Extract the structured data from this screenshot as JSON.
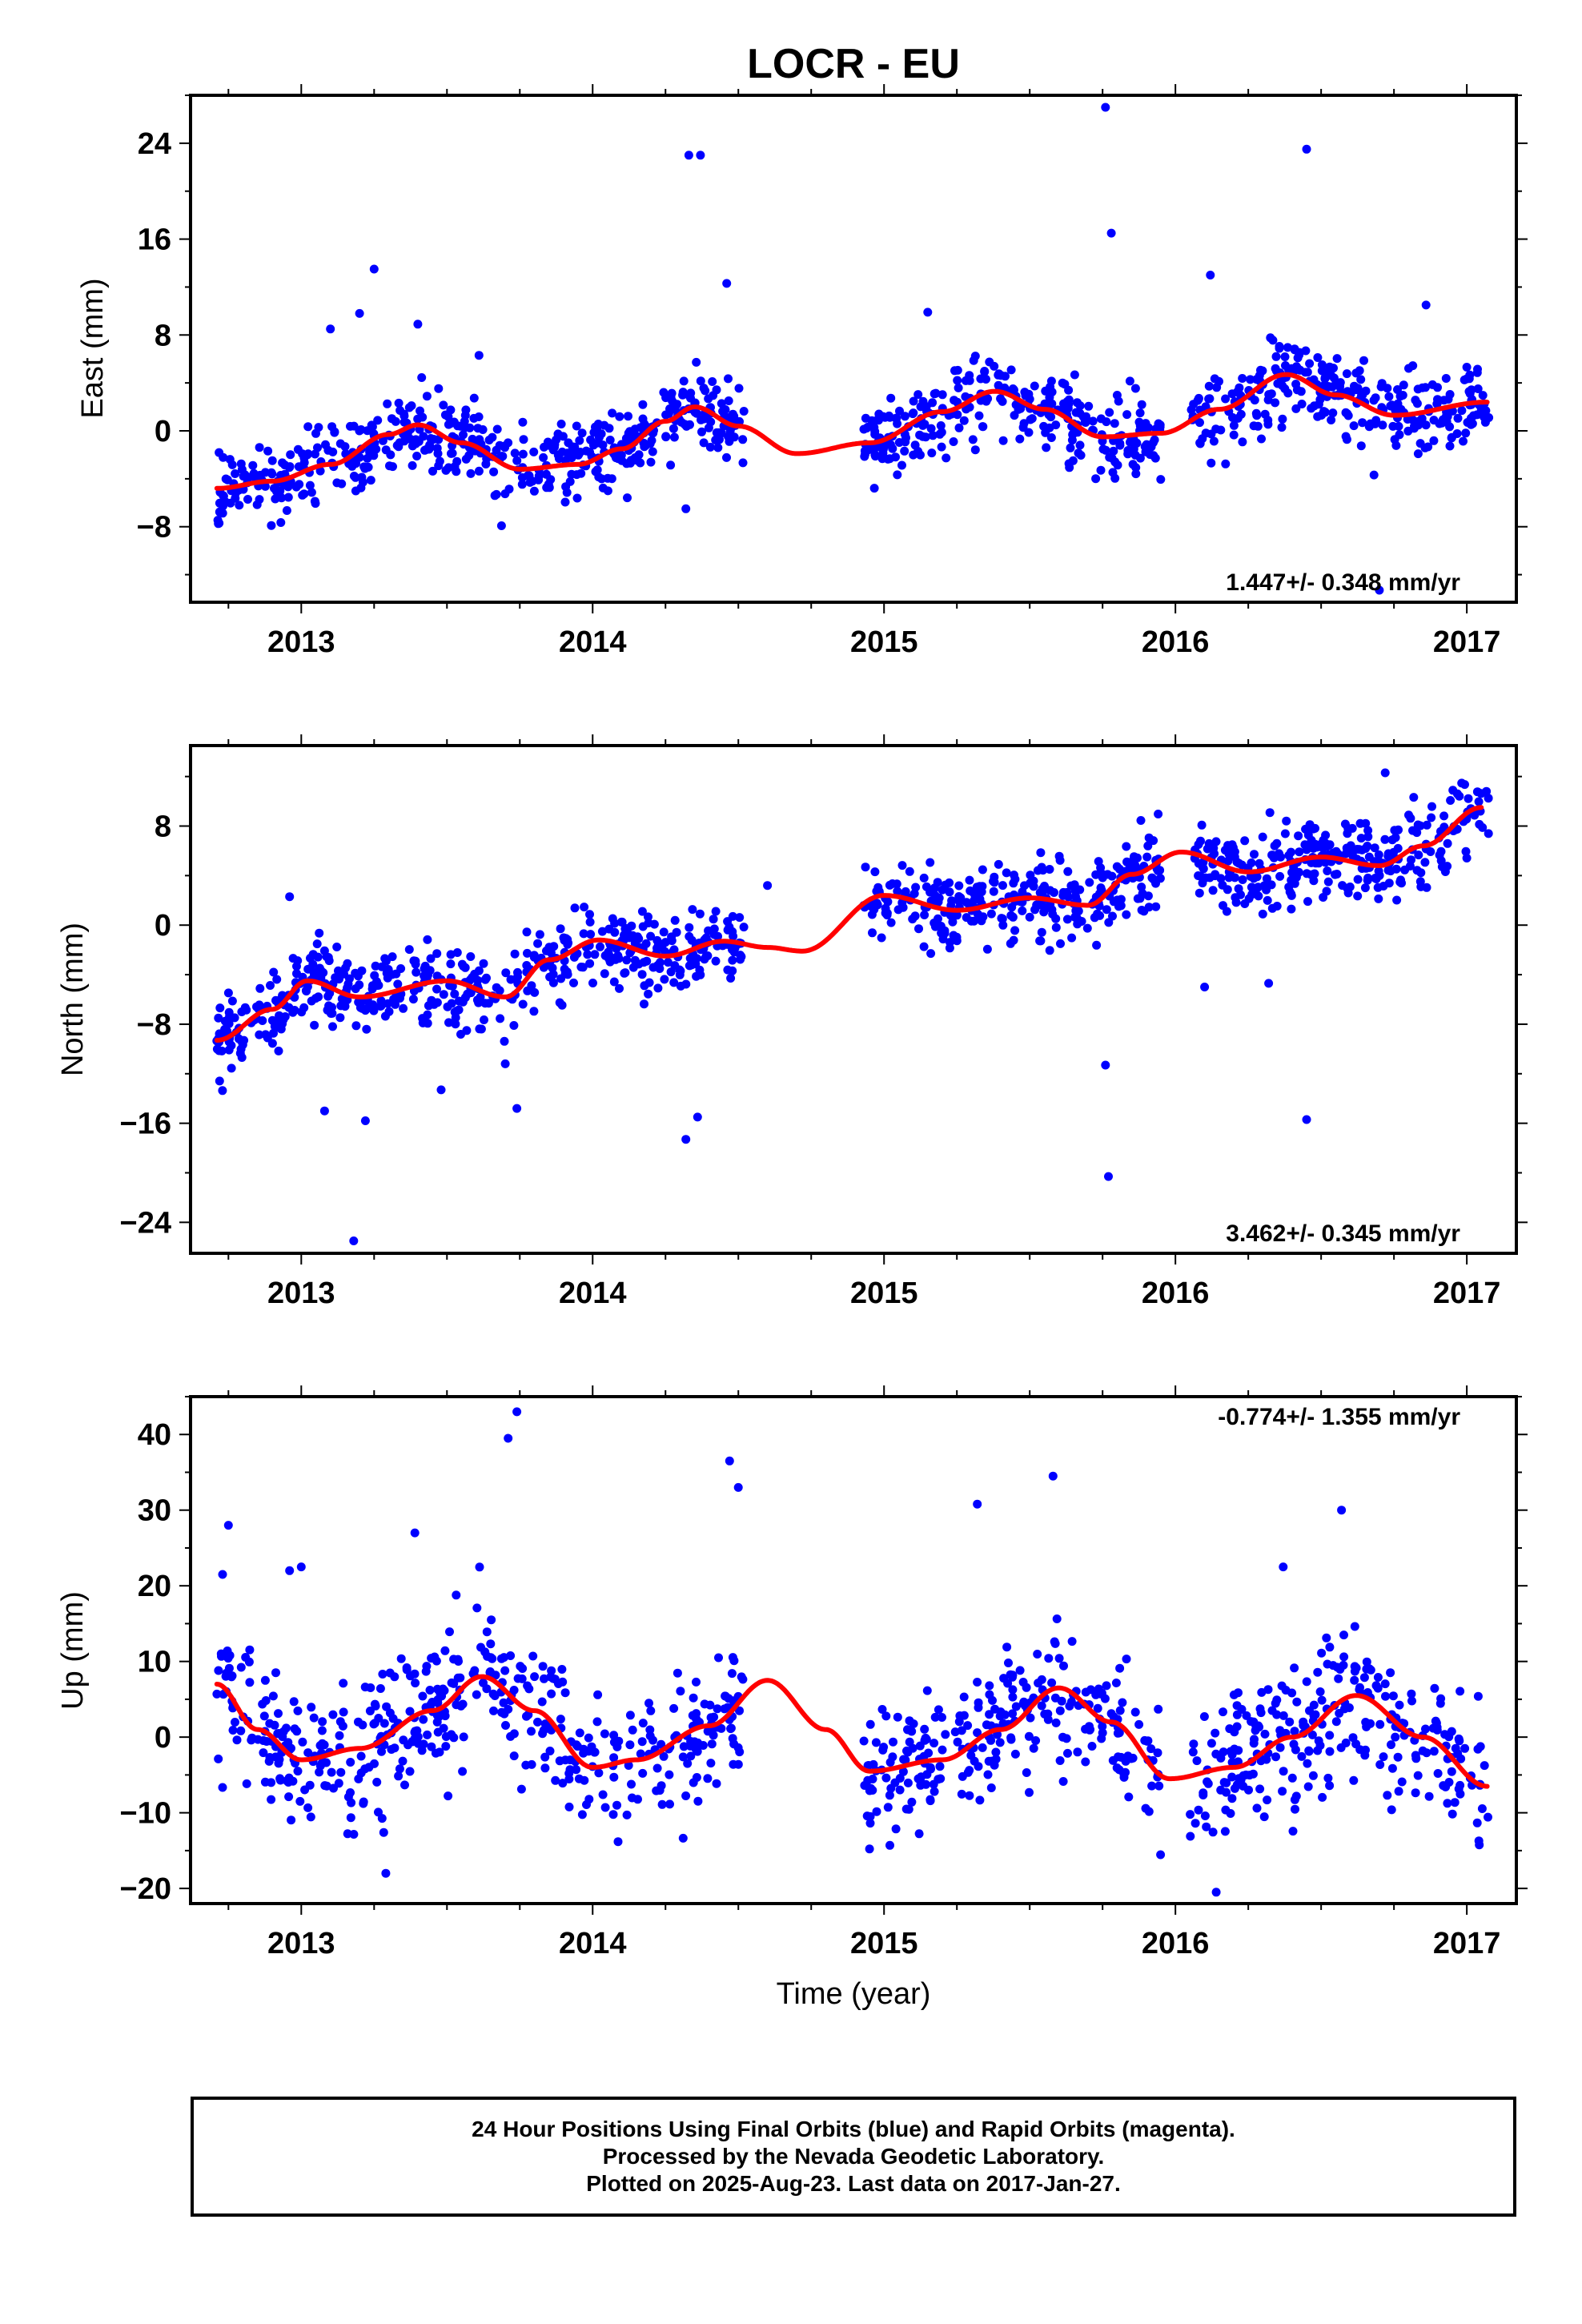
{
  "figure": {
    "title": "LOCR - EU",
    "xlabel": "Time (year)"
  },
  "colors": {
    "points": "#0000ff",
    "fit": "#ff0000"
  },
  "footer": {
    "line1": "24 Hour Positions Using Final Orbits (blue) and Rapid Orbits (magenta).",
    "line2": "Processed by the Nevada Geodetic Laboratory.",
    "line3": "Plotted on 2025-Aug-23. Last data on 2017-Jan-27."
  },
  "chart_data": [
    {
      "type": "scatter",
      "ylabel": "East (mm)",
      "xlim": [
        2012.62,
        2017.17
      ],
      "ylim": [
        -14.3,
        28.0
      ],
      "yticks": [
        -8,
        0,
        8,
        16,
        24
      ],
      "ytick_labels": [
        "−8",
        "0",
        "8",
        "16",
        "24"
      ],
      "xticks": [
        2013,
        2014,
        2015,
        2016,
        2017
      ],
      "xtick_labels": [
        "2013",
        "2014",
        "2015",
        "2016",
        "2017"
      ],
      "rate_label": "1.447+/- 0.348 mm/yr",
      "rate_position": "bottom-right",
      "fit": {
        "x": [
          2012.71,
          2012.9,
          2013.1,
          2013.3,
          2013.4,
          2013.55,
          2013.75,
          2013.95,
          2014.1,
          2014.25,
          2014.35,
          2014.5,
          2014.7,
          2014.95,
          2015.2,
          2015.38,
          2015.55,
          2015.75,
          2015.95,
          2016.15,
          2016.38,
          2016.55,
          2016.75,
          2017.07
        ],
        "y": [
          -4.8,
          -4.2,
          -2.8,
          -0.3,
          0.5,
          -1.0,
          -3.2,
          -2.8,
          -1.5,
          0.8,
          2.0,
          0.4,
          -1.9,
          -1.0,
          1.6,
          3.3,
          1.8,
          -0.5,
          -0.2,
          1.8,
          4.7,
          3.0,
          1.3,
          2.4
        ]
      },
      "outliers": {
        "x": [
          2013.25,
          2013.2,
          2013.4,
          2013.1,
          2014.33,
          2014.37,
          2014.46,
          2015.76,
          2015.78,
          2016.12,
          2016.45,
          2016.86,
          2015.15,
          2013.61,
          2014.32,
          2016.7
        ],
        "y": [
          13.5,
          9.8,
          8.9,
          8.5,
          23.0,
          23.0,
          12.3,
          27.0,
          16.5,
          13.0,
          23.5,
          10.5,
          9.9,
          6.3,
          -6.5,
          -13.3
        ]
      },
      "points": {
        "segments": [
          [
            2012.71,
            2014.52
          ],
          [
            2014.93,
            2015.95
          ],
          [
            2016.05,
            2017.08
          ]
        ],
        "count": 1100,
        "spread": 1.7
      }
    },
    {
      "type": "scatter",
      "ylabel": "North (mm)",
      "xlim": [
        2012.62,
        2017.17
      ],
      "ylim": [
        -26.5,
        14.5
      ],
      "yticks": [
        -24,
        -16,
        -8,
        0,
        8
      ],
      "ytick_labels": [
        "−24",
        "−16",
        "−8",
        "0",
        "8"
      ],
      "xticks": [
        2013,
        2014,
        2015,
        2016,
        2017
      ],
      "xtick_labels": [
        "2013",
        "2014",
        "2015",
        "2016",
        "2017"
      ],
      "rate_label": "3.462+/- 0.345 mm/yr",
      "rate_position": "bottom-right",
      "fit": {
        "x": [
          2012.71,
          2012.9,
          2013.02,
          2013.2,
          2013.5,
          2013.7,
          2013.85,
          2014.02,
          2014.25,
          2014.45,
          2014.6,
          2014.72,
          2015.0,
          2015.25,
          2015.5,
          2015.7,
          2015.85,
          2016.02,
          2016.25,
          2016.5,
          2016.7,
          2016.85,
          2017.05
        ],
        "y": [
          -9.3,
          -6.8,
          -4.5,
          -5.8,
          -4.5,
          -5.8,
          -2.8,
          -1.2,
          -2.5,
          -1.3,
          -1.8,
          -2.1,
          2.4,
          1.2,
          2.2,
          1.6,
          4.1,
          5.9,
          4.3,
          5.5,
          4.8,
          6.4,
          9.5
        ]
      },
      "outliers": {
        "x": [
          2013.08,
          2013.18,
          2013.22,
          2013.48,
          2013.74,
          2013.7,
          2014.32,
          2014.36,
          2014.6,
          2015.76,
          2015.77,
          2016.1,
          2016.32,
          2016.45,
          2016.72,
          2012.96
        ],
        "y": [
          -15.0,
          -25.5,
          -15.8,
          -13.3,
          -14.8,
          -11.2,
          -17.3,
          -15.5,
          3.2,
          -11.3,
          -20.3,
          -5.0,
          -4.7,
          -15.7,
          12.3,
          2.3
        ]
      },
      "points": {
        "segments": [
          [
            2012.71,
            2014.52
          ],
          [
            2014.93,
            2015.95
          ],
          [
            2016.05,
            2017.08
          ]
        ],
        "count": 1100,
        "spread": 1.6
      }
    },
    {
      "type": "scatter",
      "ylabel": "Up (mm)",
      "xlim": [
        2012.62,
        2017.17
      ],
      "ylim": [
        -22.0,
        45.0
      ],
      "yticks": [
        -20,
        -10,
        0,
        10,
        20,
        30,
        40
      ],
      "ytick_labels": [
        "−20",
        "−10",
        "0",
        "10",
        "20",
        "30",
        "40"
      ],
      "xticks": [
        2013,
        2014,
        2015,
        2016,
        2017
      ],
      "xtick_labels": [
        "2013",
        "2014",
        "2015",
        "2016",
        "2017"
      ],
      "rate_label": "-0.774+/- 1.355 mm/yr",
      "rate_position": "top-right",
      "fit": {
        "x": [
          2012.71,
          2012.85,
          2013.0,
          2013.2,
          2013.45,
          2013.62,
          2013.8,
          2014.0,
          2014.15,
          2014.4,
          2014.6,
          2014.8,
          2014.95,
          2015.2,
          2015.4,
          2015.6,
          2015.78,
          2015.98,
          2016.2,
          2016.4,
          2016.62,
          2016.85,
          2017.07
        ],
        "y": [
          7.0,
          1.0,
          -3.0,
          -1.5,
          3.5,
          8.0,
          3.5,
          -4.0,
          -3.0,
          1.5,
          7.5,
          1.0,
          -4.5,
          -3.0,
          1.0,
          6.5,
          2.0,
          -5.5,
          -4.0,
          0.0,
          5.5,
          0.0,
          -6.5
        ]
      },
      "outliers": {
        "x": [
          2013.71,
          2013.74,
          2013.39,
          2012.96,
          2013.0,
          2014.47,
          2014.5,
          2015.32,
          2015.58,
          2016.57,
          2016.37,
          2016.14,
          2013.29,
          2012.75,
          2012.73
        ],
        "y": [
          39.5,
          43.0,
          27.0,
          22.0,
          22.5,
          36.5,
          33.0,
          30.8,
          34.5,
          30.0,
          22.5,
          -20.5,
          -18.0,
          28.0,
          21.5
        ]
      },
      "points": {
        "segments": [
          [
            2012.71,
            2014.52
          ],
          [
            2014.93,
            2015.95
          ],
          [
            2016.05,
            2017.08
          ]
        ],
        "count": 1000,
        "spread": 4.6
      }
    }
  ]
}
